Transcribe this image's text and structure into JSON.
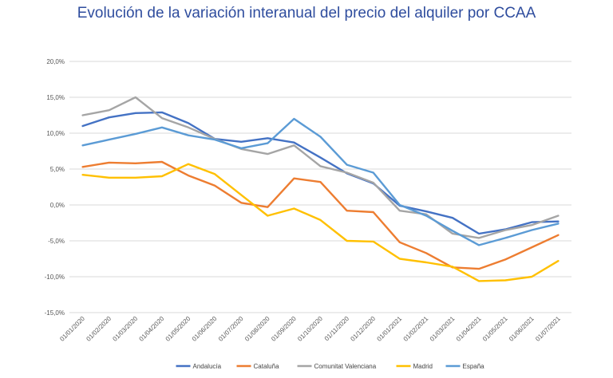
{
  "chart_data": {
    "type": "line",
    "title": "Evolución de la variación interanual del precio del alquiler por CCAA",
    "categories": [
      "01/01/2020",
      "01/02/2020",
      "01/03/2020",
      "01/04/2020",
      "01/05/2020",
      "01/06/2020",
      "01/07/2020",
      "01/08/2020",
      "01/09/2020",
      "01/10/2020",
      "01/11/2020",
      "01/12/2020",
      "01/01/2021",
      "01/02/2021",
      "01/03/2021",
      "01/04/2021",
      "01/05/2021",
      "01/06/2021",
      "01/07/2021"
    ],
    "ylim": [
      -15,
      20
    ],
    "ytick_labels": [
      "20,0%",
      "15,0%",
      "10,0%",
      "5,0%",
      "0,0%",
      "-5,0%",
      "-10,0%",
      "-15,0%"
    ],
    "ytick_values": [
      20,
      15,
      10,
      5,
      0,
      -5,
      -10,
      -15
    ],
    "grid": true,
    "legend_position": "bottom",
    "series": [
      {
        "name": "Andalucía",
        "color": "#4472c4",
        "values": [
          11.0,
          12.2,
          12.8,
          12.9,
          11.4,
          9.2,
          8.8,
          9.3,
          8.7,
          6.6,
          4.4,
          3.0,
          -0.1,
          -0.9,
          -1.8,
          -4.0,
          -3.4,
          -2.4,
          -2.3
        ]
      },
      {
        "name": "Cataluña",
        "color": "#ed7d31",
        "values": [
          5.3,
          5.9,
          5.8,
          6.0,
          4.1,
          2.7,
          0.3,
          -0.3,
          3.7,
          3.2,
          -0.8,
          -1.0,
          -5.2,
          -6.7,
          -8.7,
          -8.9,
          -7.6,
          -5.9,
          -4.2
        ]
      },
      {
        "name": "Comunitat Valenciana",
        "color": "#a5a5a5",
        "values": [
          12.5,
          13.2,
          15.0,
          12.1,
          10.8,
          9.2,
          7.8,
          7.1,
          8.3,
          5.4,
          4.5,
          3.1,
          -0.8,
          -1.3,
          -4.0,
          -4.6,
          -3.5,
          -2.8,
          -1.5
        ]
      },
      {
        "name": "Madrid",
        "color": "#ffc000",
        "values": [
          4.2,
          3.8,
          3.8,
          4.0,
          5.7,
          4.3,
          1.4,
          -1.5,
          -0.5,
          -2.1,
          -5.0,
          -5.1,
          -7.5,
          -8.0,
          -8.6,
          -10.6,
          -10.5,
          -10.0,
          -7.8
        ]
      },
      {
        "name": "España",
        "color": "#5b9bd5",
        "values": [
          8.3,
          9.1,
          9.9,
          10.8,
          9.7,
          9.1,
          7.9,
          8.6,
          12.0,
          9.5,
          5.6,
          4.5,
          0.0,
          -1.5,
          -3.6,
          -5.6,
          -4.6,
          -3.5,
          -2.6
        ]
      }
    ]
  }
}
